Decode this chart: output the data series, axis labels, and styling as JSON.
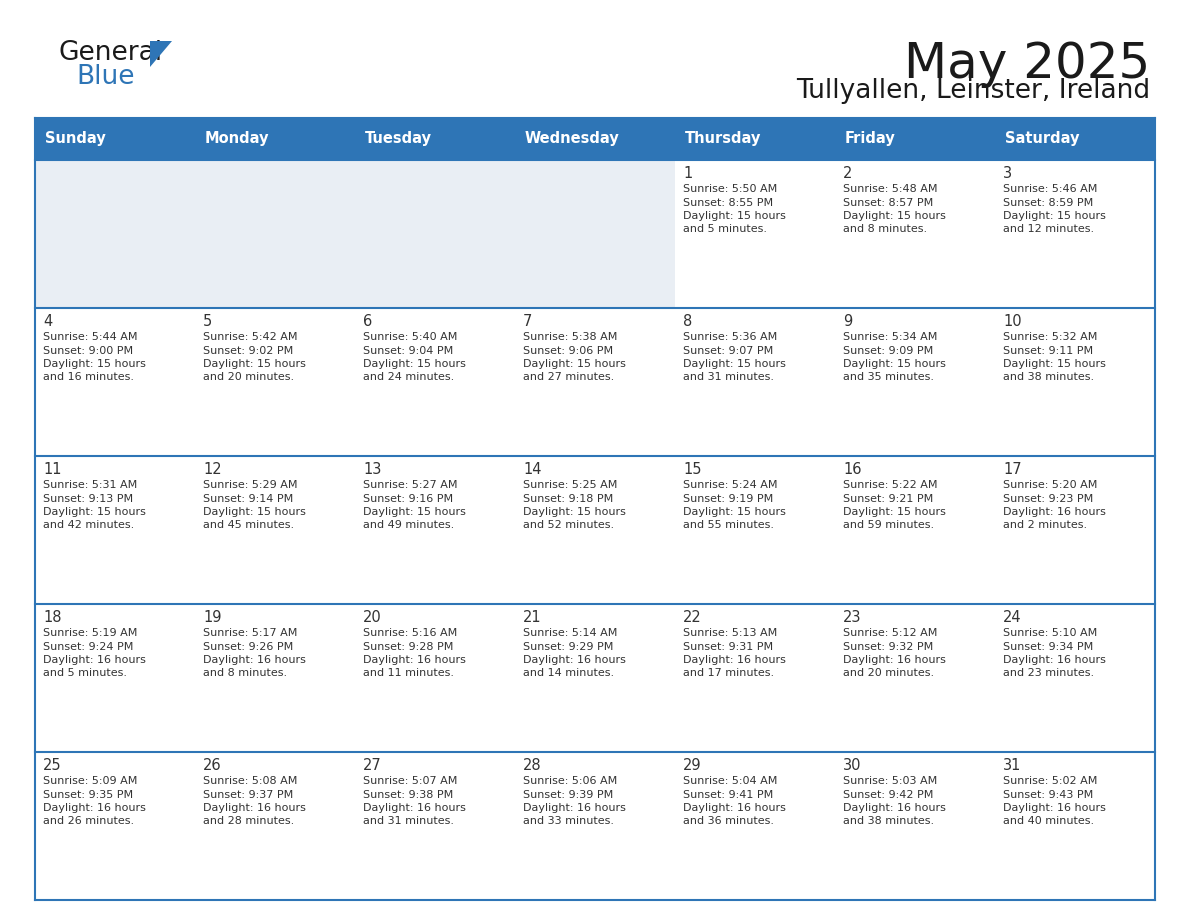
{
  "title": "May 2025",
  "subtitle": "Tullyallen, Leinster, Ireland",
  "days_of_week": [
    "Sunday",
    "Monday",
    "Tuesday",
    "Wednesday",
    "Thursday",
    "Friday",
    "Saturday"
  ],
  "header_bg": "#2E75B6",
  "header_text": "#FFFFFF",
  "row1_bg": "#E9EEF4",
  "row_bg": "#FFFFFF",
  "border_color": "#2E75B6",
  "day_num_color": "#333333",
  "cell_text_color": "#333333",
  "calendar_data": [
    [
      null,
      null,
      null,
      null,
      {
        "day": 1,
        "sunrise": "5:50 AM",
        "sunset": "8:55 PM",
        "daylight": "15 hours",
        "daylight2": "and 5 minutes."
      },
      {
        "day": 2,
        "sunrise": "5:48 AM",
        "sunset": "8:57 PM",
        "daylight": "15 hours",
        "daylight2": "and 8 minutes."
      },
      {
        "day": 3,
        "sunrise": "5:46 AM",
        "sunset": "8:59 PM",
        "daylight": "15 hours",
        "daylight2": "and 12 minutes."
      }
    ],
    [
      {
        "day": 4,
        "sunrise": "5:44 AM",
        "sunset": "9:00 PM",
        "daylight": "15 hours",
        "daylight2": "and 16 minutes."
      },
      {
        "day": 5,
        "sunrise": "5:42 AM",
        "sunset": "9:02 PM",
        "daylight": "15 hours",
        "daylight2": "and 20 minutes."
      },
      {
        "day": 6,
        "sunrise": "5:40 AM",
        "sunset": "9:04 PM",
        "daylight": "15 hours",
        "daylight2": "and 24 minutes."
      },
      {
        "day": 7,
        "sunrise": "5:38 AM",
        "sunset": "9:06 PM",
        "daylight": "15 hours",
        "daylight2": "and 27 minutes."
      },
      {
        "day": 8,
        "sunrise": "5:36 AM",
        "sunset": "9:07 PM",
        "daylight": "15 hours",
        "daylight2": "and 31 minutes."
      },
      {
        "day": 9,
        "sunrise": "5:34 AM",
        "sunset": "9:09 PM",
        "daylight": "15 hours",
        "daylight2": "and 35 minutes."
      },
      {
        "day": 10,
        "sunrise": "5:32 AM",
        "sunset": "9:11 PM",
        "daylight": "15 hours",
        "daylight2": "and 38 minutes."
      }
    ],
    [
      {
        "day": 11,
        "sunrise": "5:31 AM",
        "sunset": "9:13 PM",
        "daylight": "15 hours",
        "daylight2": "and 42 minutes."
      },
      {
        "day": 12,
        "sunrise": "5:29 AM",
        "sunset": "9:14 PM",
        "daylight": "15 hours",
        "daylight2": "and 45 minutes."
      },
      {
        "day": 13,
        "sunrise": "5:27 AM",
        "sunset": "9:16 PM",
        "daylight": "15 hours",
        "daylight2": "and 49 minutes."
      },
      {
        "day": 14,
        "sunrise": "5:25 AM",
        "sunset": "9:18 PM",
        "daylight": "15 hours",
        "daylight2": "and 52 minutes."
      },
      {
        "day": 15,
        "sunrise": "5:24 AM",
        "sunset": "9:19 PM",
        "daylight": "15 hours",
        "daylight2": "and 55 minutes."
      },
      {
        "day": 16,
        "sunrise": "5:22 AM",
        "sunset": "9:21 PM",
        "daylight": "15 hours",
        "daylight2": "and 59 minutes."
      },
      {
        "day": 17,
        "sunrise": "5:20 AM",
        "sunset": "9:23 PM",
        "daylight": "16 hours",
        "daylight2": "and 2 minutes."
      }
    ],
    [
      {
        "day": 18,
        "sunrise": "5:19 AM",
        "sunset": "9:24 PM",
        "daylight": "16 hours",
        "daylight2": "and 5 minutes."
      },
      {
        "day": 19,
        "sunrise": "5:17 AM",
        "sunset": "9:26 PM",
        "daylight": "16 hours",
        "daylight2": "and 8 minutes."
      },
      {
        "day": 20,
        "sunrise": "5:16 AM",
        "sunset": "9:28 PM",
        "daylight": "16 hours",
        "daylight2": "and 11 minutes."
      },
      {
        "day": 21,
        "sunrise": "5:14 AM",
        "sunset": "9:29 PM",
        "daylight": "16 hours",
        "daylight2": "and 14 minutes."
      },
      {
        "day": 22,
        "sunrise": "5:13 AM",
        "sunset": "9:31 PM",
        "daylight": "16 hours",
        "daylight2": "and 17 minutes."
      },
      {
        "day": 23,
        "sunrise": "5:12 AM",
        "sunset": "9:32 PM",
        "daylight": "16 hours",
        "daylight2": "and 20 minutes."
      },
      {
        "day": 24,
        "sunrise": "5:10 AM",
        "sunset": "9:34 PM",
        "daylight": "16 hours",
        "daylight2": "and 23 minutes."
      }
    ],
    [
      {
        "day": 25,
        "sunrise": "5:09 AM",
        "sunset": "9:35 PM",
        "daylight": "16 hours",
        "daylight2": "and 26 minutes."
      },
      {
        "day": 26,
        "sunrise": "5:08 AM",
        "sunset": "9:37 PM",
        "daylight": "16 hours",
        "daylight2": "and 28 minutes."
      },
      {
        "day": 27,
        "sunrise": "5:07 AM",
        "sunset": "9:38 PM",
        "daylight": "16 hours",
        "daylight2": "and 31 minutes."
      },
      {
        "day": 28,
        "sunrise": "5:06 AM",
        "sunset": "9:39 PM",
        "daylight": "16 hours",
        "daylight2": "and 33 minutes."
      },
      {
        "day": 29,
        "sunrise": "5:04 AM",
        "sunset": "9:41 PM",
        "daylight": "16 hours",
        "daylight2": "and 36 minutes."
      },
      {
        "day": 30,
        "sunrise": "5:03 AM",
        "sunset": "9:42 PM",
        "daylight": "16 hours",
        "daylight2": "and 38 minutes."
      },
      {
        "day": 31,
        "sunrise": "5:02 AM",
        "sunset": "9:43 PM",
        "daylight": "16 hours",
        "daylight2": "and 40 minutes."
      }
    ]
  ]
}
